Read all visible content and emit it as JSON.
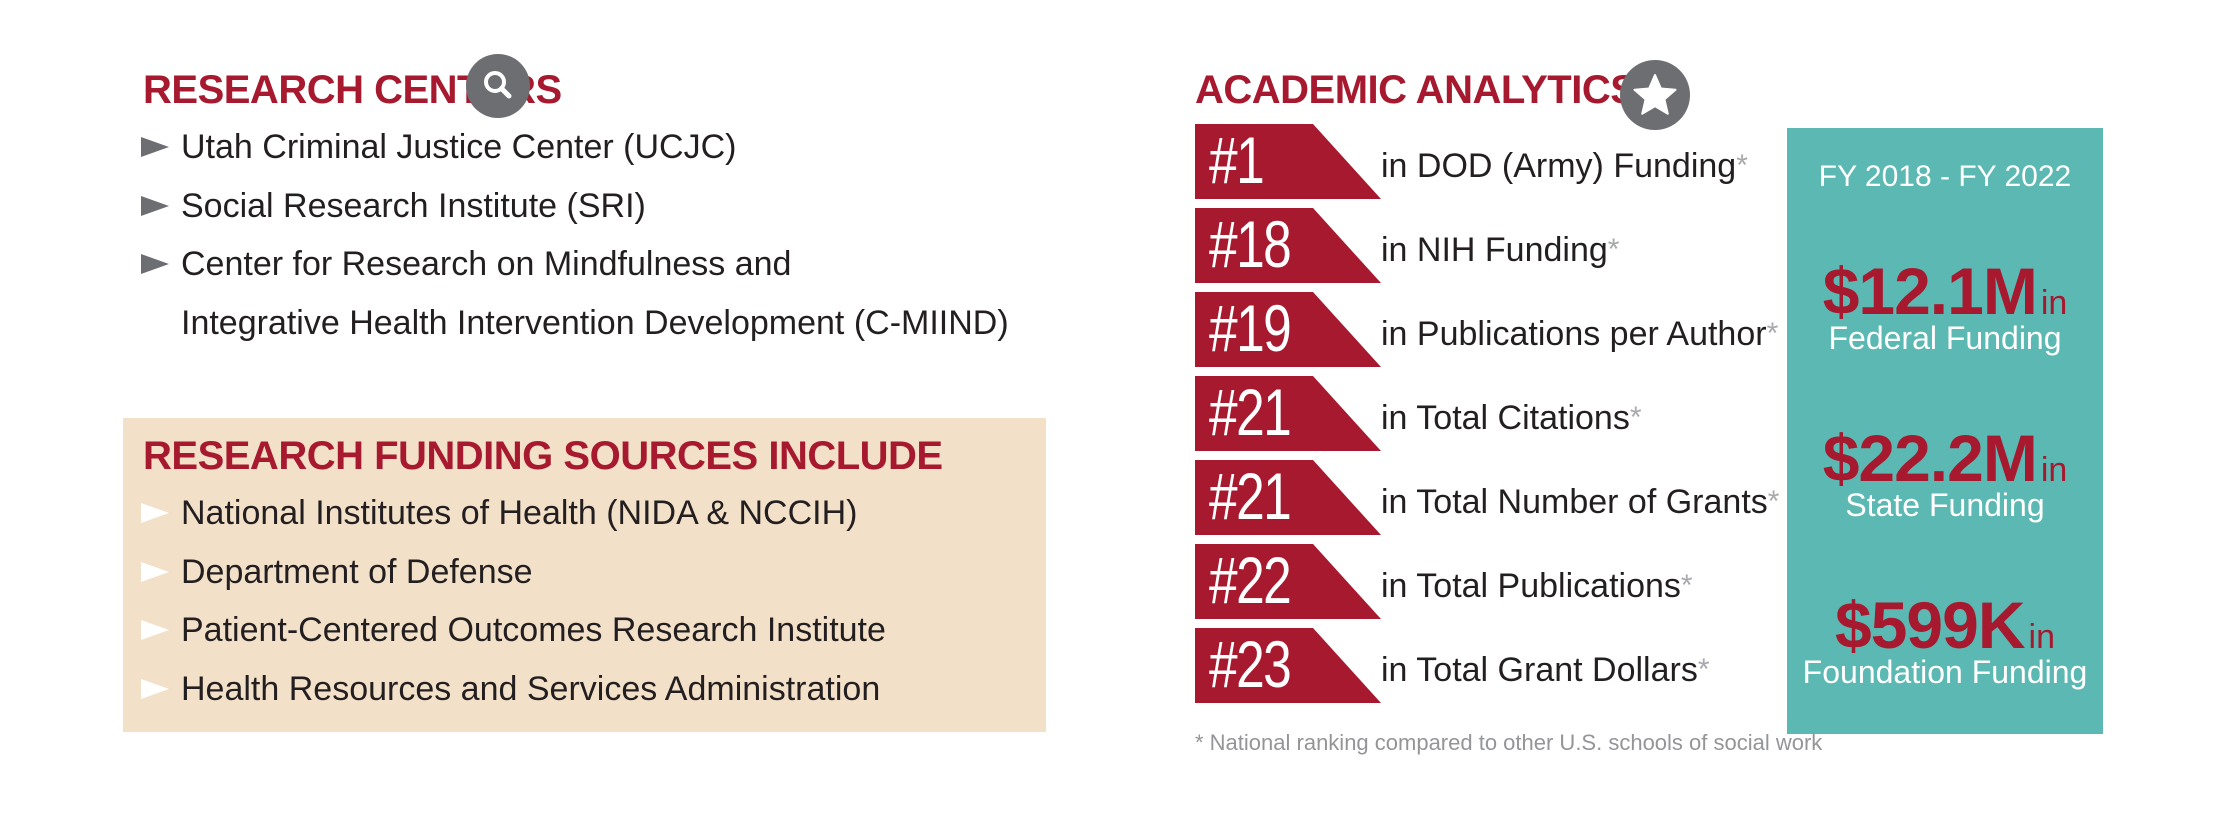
{
  "research_centers": {
    "title": "RESEARCH CENTERS",
    "icon": "search-icon",
    "items": [
      {
        "line1": "Utah Criminal Justice Center (UCJC)",
        "line2": ""
      },
      {
        "line1": "Social Research Institute (SRI)",
        "line2": ""
      },
      {
        "line1": "Center for Research on Mindfulness and",
        "line2": "Integrative Health Intervention Development (C-MIIND)"
      }
    ]
  },
  "funding_sources": {
    "title": "RESEARCH FUNDING SOURCES INCLUDE",
    "items": [
      "National Institutes of Health (NIDA & NCCIH)",
      "Department of Defense",
      "Patient-Centered Outcomes Research Institute",
      "Health Resources and Services Administration"
    ]
  },
  "academic_analytics": {
    "title": "ACADEMIC ANALYTICS",
    "icon": "star-icon",
    "rankings": [
      {
        "rank": "#1",
        "label": "in DOD (Army) Funding",
        "asterisk": "*"
      },
      {
        "rank": "#18",
        "label": "in NIH Funding",
        "asterisk": "*"
      },
      {
        "rank": "#19",
        "label": "in Publications per Author",
        "asterisk": "*"
      },
      {
        "rank": "#21",
        "label": "in Total Citations",
        "asterisk": "*"
      },
      {
        "rank": "#21",
        "label": "in Total Number of Grants",
        "asterisk": "*"
      },
      {
        "rank": "#22",
        "label": "in Total Publications",
        "asterisk": "*"
      },
      {
        "rank": "#23",
        "label": "in Total Grant Dollars",
        "asterisk": "*"
      }
    ],
    "footnote": "* National ranking compared to other U.S. schools of social work"
  },
  "funding_summary": {
    "period": "FY 2018 - FY 2022",
    "stats": [
      {
        "amount": "$12.1M",
        "in": "in",
        "desc": "Federal Funding"
      },
      {
        "amount": "$22.2M",
        "in": "in",
        "desc": "State Funding"
      },
      {
        "amount": "$599K",
        "in": "in",
        "desc": "Foundation Funding"
      }
    ]
  },
  "colors": {
    "accent_red": "#a6192e",
    "teal": "#5cb8b2",
    "beige": "#f3e0c8",
    "icon_gray": "#6d6e71"
  }
}
